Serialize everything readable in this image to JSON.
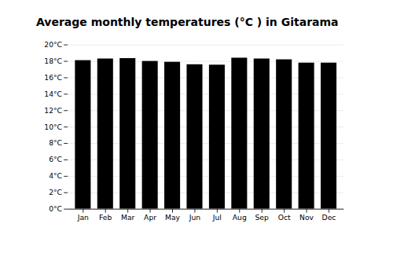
{
  "chart_data": {
    "type": "bar",
    "title": "Average monthly temperatures (°C ) in Gitarama",
    "categories": [
      "Jan",
      "Feb",
      "Mar",
      "Apr",
      "May",
      "Jun",
      "Jul",
      "Aug",
      "Sep",
      "Oct",
      "Nov",
      "Dec"
    ],
    "values": [
      18.1,
      18.3,
      18.35,
      18.0,
      17.9,
      17.6,
      17.55,
      18.4,
      18.3,
      18.2,
      17.8,
      17.8
    ],
    "ylim": [
      0,
      20
    ],
    "yticks": [
      {
        "value": 0,
        "label": "0°C"
      },
      {
        "value": 2,
        "label": "2°C"
      },
      {
        "value": 4,
        "label": "4°C"
      },
      {
        "value": 6,
        "label": "6°C"
      },
      {
        "value": 8,
        "label": "8°C"
      },
      {
        "value": 10,
        "label": "10°C"
      },
      {
        "value": 12,
        "label": "12°C"
      },
      {
        "value": 14,
        "label": "14°C"
      },
      {
        "value": 16,
        "label": "16°C"
      },
      {
        "value": 18,
        "label": "18°C"
      },
      {
        "value": 20,
        "label": "20°C"
      }
    ],
    "grid": true
  }
}
